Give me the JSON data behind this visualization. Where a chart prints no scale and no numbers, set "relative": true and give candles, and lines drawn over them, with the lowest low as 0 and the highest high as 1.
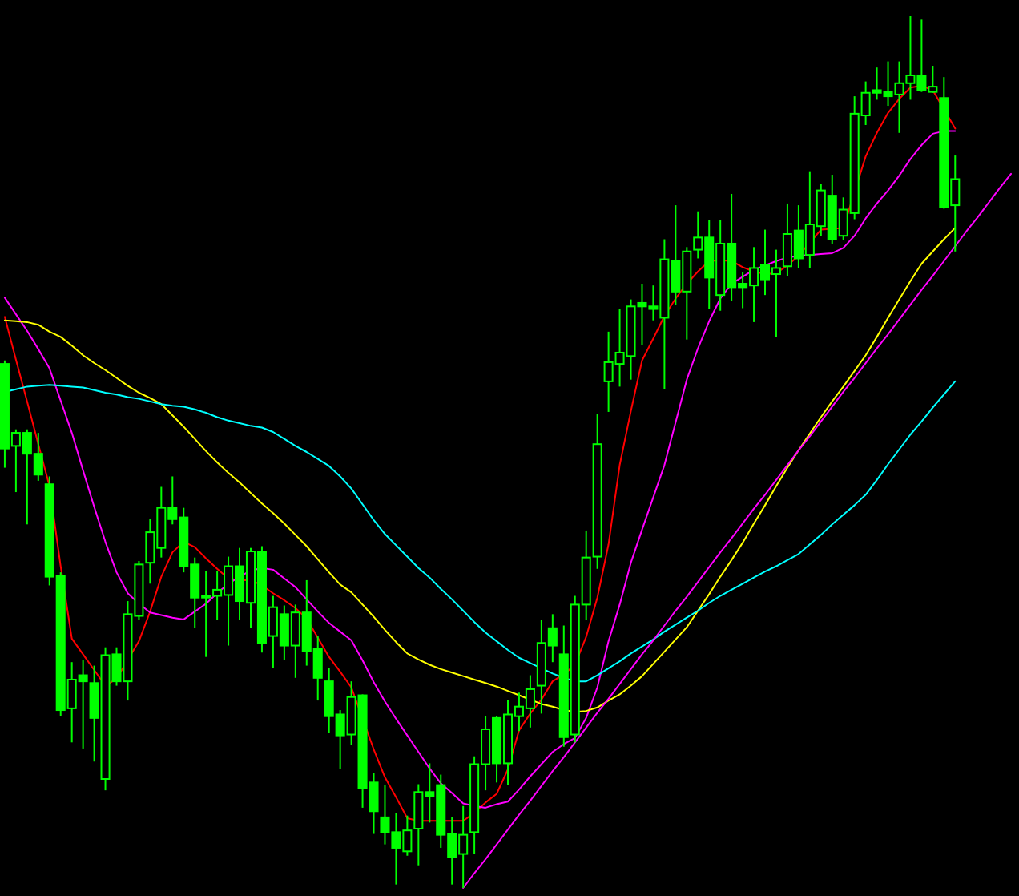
{
  "chart_data": {
    "type": "candlestick",
    "relative": true,
    "color": "#00ff00",
    "categories": [
      null,
      null,
      null,
      null,
      null,
      null,
      null,
      null,
      null,
      null,
      null,
      null,
      null,
      null,
      null,
      null,
      null,
      null,
      null,
      null,
      null,
      null,
      null,
      null,
      null,
      null,
      null,
      null,
      null,
      null,
      null,
      null,
      null,
      null,
      null,
      null,
      null,
      null,
      null,
      null,
      null,
      null,
      null,
      null,
      null,
      null,
      null,
      null,
      null,
      null,
      null,
      null,
      null,
      null,
      null,
      null,
      null,
      null,
      null,
      null,
      null,
      null,
      null,
      null,
      null,
      null,
      null,
      null,
      null,
      null,
      null,
      null,
      null,
      null,
      null,
      null,
      null,
      null,
      null,
      null,
      null,
      null,
      null,
      null,
      null,
      null,
      null,
      null,
      null,
      null,
      null
    ],
    "ohlc": [
      [
        0.601,
        0.605,
        0.482,
        0.504
      ],
      [
        0.507,
        0.526,
        0.454,
        0.522
      ],
      [
        0.522,
        0.526,
        0.417,
        0.498
      ],
      [
        0.498,
        0.522,
        0.467,
        0.474
      ],
      [
        0.463,
        0.472,
        0.347,
        0.357
      ],
      [
        0.358,
        0.362,
        0.197,
        0.204
      ],
      [
        0.206,
        0.259,
        0.167,
        0.239
      ],
      [
        0.244,
        0.261,
        0.16,
        0.237
      ],
      [
        0.235,
        0.255,
        0.145,
        0.195
      ],
      [
        0.125,
        0.276,
        0.112,
        0.267
      ],
      [
        0.268,
        0.276,
        0.232,
        0.237
      ],
      [
        0.237,
        0.329,
        0.215,
        0.314
      ],
      [
        0.312,
        0.375,
        0.307,
        0.371
      ],
      [
        0.373,
        0.423,
        0.349,
        0.408
      ],
      [
        0.39,
        0.46,
        0.379,
        0.436
      ],
      [
        0.436,
        0.472,
        0.417,
        0.423
      ],
      [
        0.425,
        0.436,
        0.362,
        0.369
      ],
      [
        0.371,
        0.379,
        0.298,
        0.333
      ],
      [
        0.335,
        0.364,
        0.265,
        0.333
      ],
      [
        0.335,
        0.364,
        0.307,
        0.342
      ],
      [
        0.336,
        0.38,
        0.278,
        0.369
      ],
      [
        0.369,
        0.39,
        0.307,
        0.329
      ],
      [
        0.327,
        0.39,
        0.298,
        0.386
      ],
      [
        0.386,
        0.392,
        0.27,
        0.281
      ],
      [
        0.289,
        0.335,
        0.252,
        0.322
      ],
      [
        0.314,
        0.324,
        0.261,
        0.278
      ],
      [
        0.278,
        0.325,
        0.241,
        0.316
      ],
      [
        0.316,
        0.353,
        0.255,
        0.272
      ],
      [
        0.274,
        0.289,
        0.215,
        0.241
      ],
      [
        0.237,
        0.252,
        0.178,
        0.197
      ],
      [
        0.199,
        0.204,
        0.136,
        0.175
      ],
      [
        0.176,
        0.237,
        0.164,
        0.219
      ],
      [
        0.221,
        0.222,
        0.092,
        0.114
      ],
      [
        0.121,
        0.132,
        0.062,
        0.088
      ],
      [
        0.081,
        0.118,
        0.05,
        0.064
      ],
      [
        0.064,
        0.086,
        0.004,
        0.046
      ],
      [
        0.042,
        0.083,
        0.037,
        0.066
      ],
      [
        0.068,
        0.119,
        0.026,
        0.11
      ],
      [
        0.11,
        0.143,
        0.075,
        0.105
      ],
      [
        0.118,
        0.13,
        0.046,
        0.061
      ],
      [
        0.062,
        0.081,
        0.004,
        0.035
      ],
      [
        0.039,
        0.094,
        0,
        0.061
      ],
      [
        0.064,
        0.151,
        0.039,
        0.142
      ],
      [
        0.142,
        0.197,
        0.112,
        0.182
      ],
      [
        0.195,
        0.197,
        0.121,
        0.143
      ],
      [
        0.143,
        0.215,
        0.118,
        0.199
      ],
      [
        0.197,
        0.224,
        0.18,
        0.208
      ],
      [
        0.206,
        0.244,
        0.184,
        0.228
      ],
      [
        0.232,
        0.307,
        0.2,
        0.281
      ],
      [
        0.298,
        0.314,
        0.259,
        0.278
      ],
      [
        0.268,
        0.301,
        0.162,
        0.173
      ],
      [
        0.176,
        0.335,
        0.167,
        0.325
      ],
      [
        0.325,
        0.41,
        0.307,
        0.379
      ],
      [
        0.38,
        0.544,
        0.366,
        0.509
      ],
      [
        0.581,
        0.638,
        0.546,
        0.603
      ],
      [
        0.601,
        0.664,
        0.575,
        0.614
      ],
      [
        0.61,
        0.675,
        0.583,
        0.667
      ],
      [
        0.671,
        0.693,
        0.623,
        0.667
      ],
      [
        0.667,
        0.691,
        0.651,
        0.664
      ],
      [
        0.654,
        0.744,
        0.572,
        0.721
      ],
      [
        0.719,
        0.783,
        0.669,
        0.684
      ],
      [
        0.684,
        0.735,
        0.629,
        0.73
      ],
      [
        0.732,
        0.776,
        0.722,
        0.746
      ],
      [
        0.746,
        0.766,
        0.664,
        0.7
      ],
      [
        0.68,
        0.766,
        0.662,
        0.739
      ],
      [
        0.739,
        0.796,
        0.673,
        0.689
      ],
      [
        0.693,
        0.706,
        0.665,
        0.689
      ],
      [
        0.691,
        0.735,
        0.649,
        0.711
      ],
      [
        0.715,
        0.755,
        0.68,
        0.698
      ],
      [
        0.704,
        0.732,
        0.632,
        0.711
      ],
      [
        0.713,
        0.785,
        0.702,
        0.75
      ],
      [
        0.754,
        0.783,
        0.711,
        0.722
      ],
      [
        0.726,
        0.822,
        0.711,
        0.761
      ],
      [
        0.759,
        0.807,
        0.748,
        0.8
      ],
      [
        0.794,
        0.818,
        0.739,
        0.744
      ],
      [
        0.748,
        0.792,
        0.743,
        0.778
      ],
      [
        0.774,
        0.908,
        0.767,
        0.888
      ],
      [
        0.886,
        0.925,
        0.875,
        0.912
      ],
      [
        0.915,
        0.941,
        0.904,
        0.912
      ],
      [
        0.913,
        0.948,
        0.897,
        0.908
      ],
      [
        0.91,
        0.948,
        0.866,
        0.923
      ],
      [
        0.923,
        1,
        0.904,
        0.932
      ],
      [
        0.932,
        0.996,
        0.913,
        0.915
      ],
      [
        0.913,
        0.943,
        0.912,
        0.919
      ],
      [
        0.906,
        0.93,
        0.779,
        0.781
      ],
      [
        0.783,
        0.84,
        0.73,
        0.813
      ],
      null,
      null,
      null,
      null,
      null
    ],
    "series": [
      {
        "type": "line",
        "color": "#ff0000",
        "values": [
          0.655,
          0.606,
          0.558,
          0.509,
          0.461,
          0.369,
          0.286,
          0.268,
          0.25,
          0.232,
          0.24,
          null,
          0.283,
          0.317,
          0.357,
          0.385,
          0.397,
          0.391,
          0.378,
          0.366,
          0.355,
          0.353,
          0.353,
          0.347,
          0.338,
          0.33,
          0.321,
          0.309,
          0.287,
          0.265,
          0.248,
          0.23,
          null,
          0.159,
          0.127,
          0.104,
          0.08,
          0.077,
          0.077,
          0.077,
          0.077,
          0.077,
          0.086,
          0.098,
          0.108,
          0.136,
          0.181,
          0.2,
          0.216,
          0.237,
          0.245,
          0.256,
          0.288,
          0.333,
          0.394,
          0.485,
          0.547,
          0.605,
          0.63,
          0.656,
          0.676,
          0.693,
          0.707,
          0.719,
          0.72,
          0.719,
          0.712,
          0.707,
          0.704,
          0.705,
          0.714,
          0.725,
          0.74,
          0.755,
          0.756,
          0.757,
          null,
          0.839,
          0.866,
          0.889,
          0.905,
          0.918,
          0.92,
          0.915,
          null,
          0.871,
          null,
          null,
          null,
          null,
          null
        ]
      },
      {
        "type": "line",
        "color": "#ff00ff",
        "values": [
          0.677,
          0.658,
          0.639,
          0.618,
          0.596,
          0.559,
          0.522,
          0.479,
          0.437,
          0.397,
          0.362,
          0.338,
          0.326,
          0.316,
          0.313,
          0.31,
          0.308,
          0.317,
          0.326,
          0.338,
          0.349,
          0.357,
          0.364,
          0.367,
          0.365,
          0.355,
          0.345,
          0.331,
          0.317,
          0.304,
          0.294,
          0.284,
          0.261,
          0.236,
          0.214,
          0.194,
          0.175,
          0.156,
          0.137,
          0.12,
          0.109,
          0.097,
          0.094,
          0.092,
          0.096,
          0.099,
          0.113,
          0.128,
          0.142,
          0.156,
          0.165,
          0.172,
          0.195,
          0.23,
          0.283,
          0.325,
          0.373,
          0.411,
          0.448,
          0.485,
          0.534,
          0.583,
          0.619,
          0.65,
          0.676,
          0.693,
          0.701,
          0.709,
          0.714,
          0.719,
          0.723,
          0.725,
          0.726,
          0.727,
          0.728,
          0.734,
          0.748,
          0.768,
          0.785,
          0.8,
          0.817,
          0.836,
          0.852,
          0.865,
          0.868,
          0.868,
          null,
          null,
          null,
          null,
          null
        ]
      },
      {
        "type": "line",
        "color": "#ffff00",
        "values": [
          0.651,
          0.65,
          0.649,
          0.646,
          0.638,
          0.632,
          0.622,
          0.611,
          0.602,
          0.594,
          0.585,
          0.576,
          0.568,
          0.562,
          0.555,
          0.542,
          0.529,
          0.515,
          0.501,
          0.488,
          0.476,
          0.465,
          0.453,
          0.441,
          0.43,
          0.418,
          0.405,
          0.392,
          0.377,
          0.362,
          0.348,
          0.339,
          0.325,
          0.311,
          0.296,
          0.282,
          0.269,
          0.262,
          0.256,
          0.251,
          0.247,
          0.243,
          0.239,
          0.235,
          0.231,
          0.226,
          0.221,
          0.216,
          0.211,
          0.208,
          0.204,
          0.202,
          0.203,
          0.207,
          0.215,
          0.222,
          0.232,
          0.243,
          0.257,
          0.271,
          0.285,
          0.299,
          0.318,
          0.337,
          0.357,
          0.376,
          0.396,
          0.418,
          0.439,
          0.461,
          0.482,
          0.502,
          0.521,
          0.54,
          0.558,
          0.575,
          0.593,
          0.611,
          0.632,
          0.654,
          0.675,
          0.696,
          0.716,
          0.73,
          0.744,
          0.757,
          null,
          null,
          null,
          null,
          null
        ]
      },
      {
        "type": "line",
        "color": "#00ffff",
        "values": [
          0.569,
          0.572,
          0.575,
          0.576,
          0.577,
          0.576,
          0.575,
          0.574,
          0.571,
          0.568,
          0.566,
          0.563,
          0.561,
          0.558,
          0.555,
          0.553,
          0.552,
          0.549,
          0.545,
          0.54,
          0.536,
          0.533,
          0.53,
          0.528,
          0.523,
          0.515,
          0.507,
          0.5,
          0.492,
          0.484,
          0.472,
          0.458,
          0.44,
          0.422,
          0.406,
          0.393,
          0.38,
          0.367,
          0.356,
          0.343,
          0.331,
          0.318,
          0.305,
          0.293,
          0.283,
          0.273,
          0.264,
          0.258,
          0.252,
          0.246,
          0.241,
          0.237,
          0.237,
          0.244,
          0.252,
          0.26,
          0.269,
          0.277,
          0.285,
          0.294,
          0.302,
          0.31,
          0.318,
          0.327,
          0.335,
          0.342,
          0.349,
          0.356,
          0.363,
          0.369,
          0.376,
          0.383,
          0.394,
          0.405,
          0.417,
          0.428,
          0.439,
          0.451,
          0.468,
          0.486,
          0.503,
          0.52,
          0.535,
          0.551,
          0.566,
          0.581,
          null,
          null,
          null,
          null,
          null
        ]
      },
      {
        "type": "line",
        "color": "#ff00ff",
        "values": [
          null,
          null,
          null,
          null,
          null,
          null,
          null,
          null,
          null,
          null,
          null,
          null,
          null,
          null,
          null,
          null,
          null,
          null,
          null,
          null,
          null,
          null,
          null,
          null,
          null,
          null,
          null,
          null,
          null,
          null,
          null,
          null,
          null,
          null,
          null,
          null,
          null,
          null,
          null,
          null,
          null,
          0,
          0.017,
          0.033,
          0.05,
          0.067,
          0.084,
          0.1,
          0.117,
          0.134,
          0.15,
          0.167,
          0.184,
          0.201,
          0.217,
          0.234,
          0.251,
          0.268,
          0.284,
          0.301,
          0.318,
          0.334,
          0.351,
          0.368,
          0.385,
          0.401,
          0.418,
          0.435,
          0.451,
          0.468,
          0.485,
          0.502,
          0.518,
          0.535,
          0.552,
          0.569,
          0.585,
          0.602,
          0.619,
          0.635,
          0.652,
          0.669,
          0.686,
          0.702,
          0.719,
          0.736,
          0.753,
          0.769,
          0.786,
          0.803,
          0.819
        ]
      }
    ]
  }
}
